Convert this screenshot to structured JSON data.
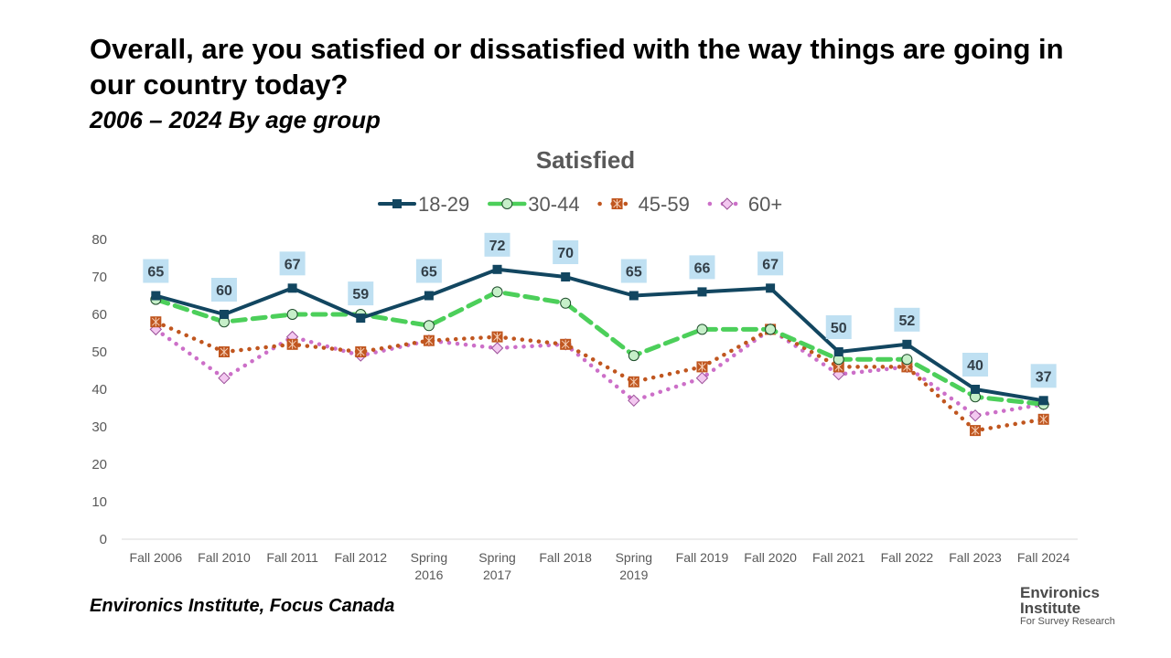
{
  "title": "Overall, are you satisfied or dissatisfied with the way things are going in our country today?",
  "subtitle": "2006 – 2024  By age group",
  "source": "Environics Institute, Focus Canada",
  "logo": {
    "line1": "Environics",
    "line2": "Institute",
    "line3": "For Survey Research"
  },
  "chart_data": {
    "type": "line",
    "title": "Satisfied",
    "xlabel": "",
    "ylabel": "",
    "ylim": [
      0,
      80
    ],
    "yticks": [
      0,
      10,
      20,
      30,
      40,
      50,
      60,
      70,
      80
    ],
    "grid": false,
    "legend_position": "top",
    "categories": [
      [
        "Fall 2006"
      ],
      [
        "Fall 2010"
      ],
      [
        "Fall 2011"
      ],
      [
        "Fall 2012"
      ],
      [
        "Spring",
        "2016"
      ],
      [
        "Spring",
        "2017"
      ],
      [
        "Fall 2018"
      ],
      [
        "Spring",
        "2019"
      ],
      [
        "Fall 2019"
      ],
      [
        "Fall 2020"
      ],
      [
        "Fall 2021"
      ],
      [
        "Fall 2022"
      ],
      [
        "Fall 2023"
      ],
      [
        "Fall 2024"
      ]
    ],
    "series": [
      {
        "name": "18-29",
        "color": "#124660",
        "style": "solid",
        "marker": "square",
        "data_labels": true,
        "values": [
          65,
          60,
          67,
          59,
          65,
          72,
          70,
          65,
          66,
          67,
          50,
          52,
          40,
          37
        ]
      },
      {
        "name": "30-44",
        "color": "#4ccf5a",
        "style": "dashed",
        "marker": "circle",
        "data_labels": false,
        "values": [
          64,
          58,
          60,
          60,
          57,
          66,
          63,
          49,
          56,
          56,
          48,
          48,
          38,
          36
        ]
      },
      {
        "name": "45-59",
        "color": "#c0561f",
        "style": "dotted",
        "marker": "x-square",
        "data_labels": false,
        "values": [
          58,
          50,
          52,
          50,
          53,
          54,
          52,
          42,
          46,
          56,
          46,
          46,
          29,
          32
        ]
      },
      {
        "name": "60+",
        "color": "#cc6fc8",
        "style": "dotted",
        "marker": "diamond",
        "data_labels": false,
        "values": [
          56,
          43,
          54,
          49,
          53,
          51,
          52,
          37,
          43,
          56,
          44,
          46,
          33,
          36
        ]
      }
    ],
    "label_bg": "#bfe0f2"
  }
}
